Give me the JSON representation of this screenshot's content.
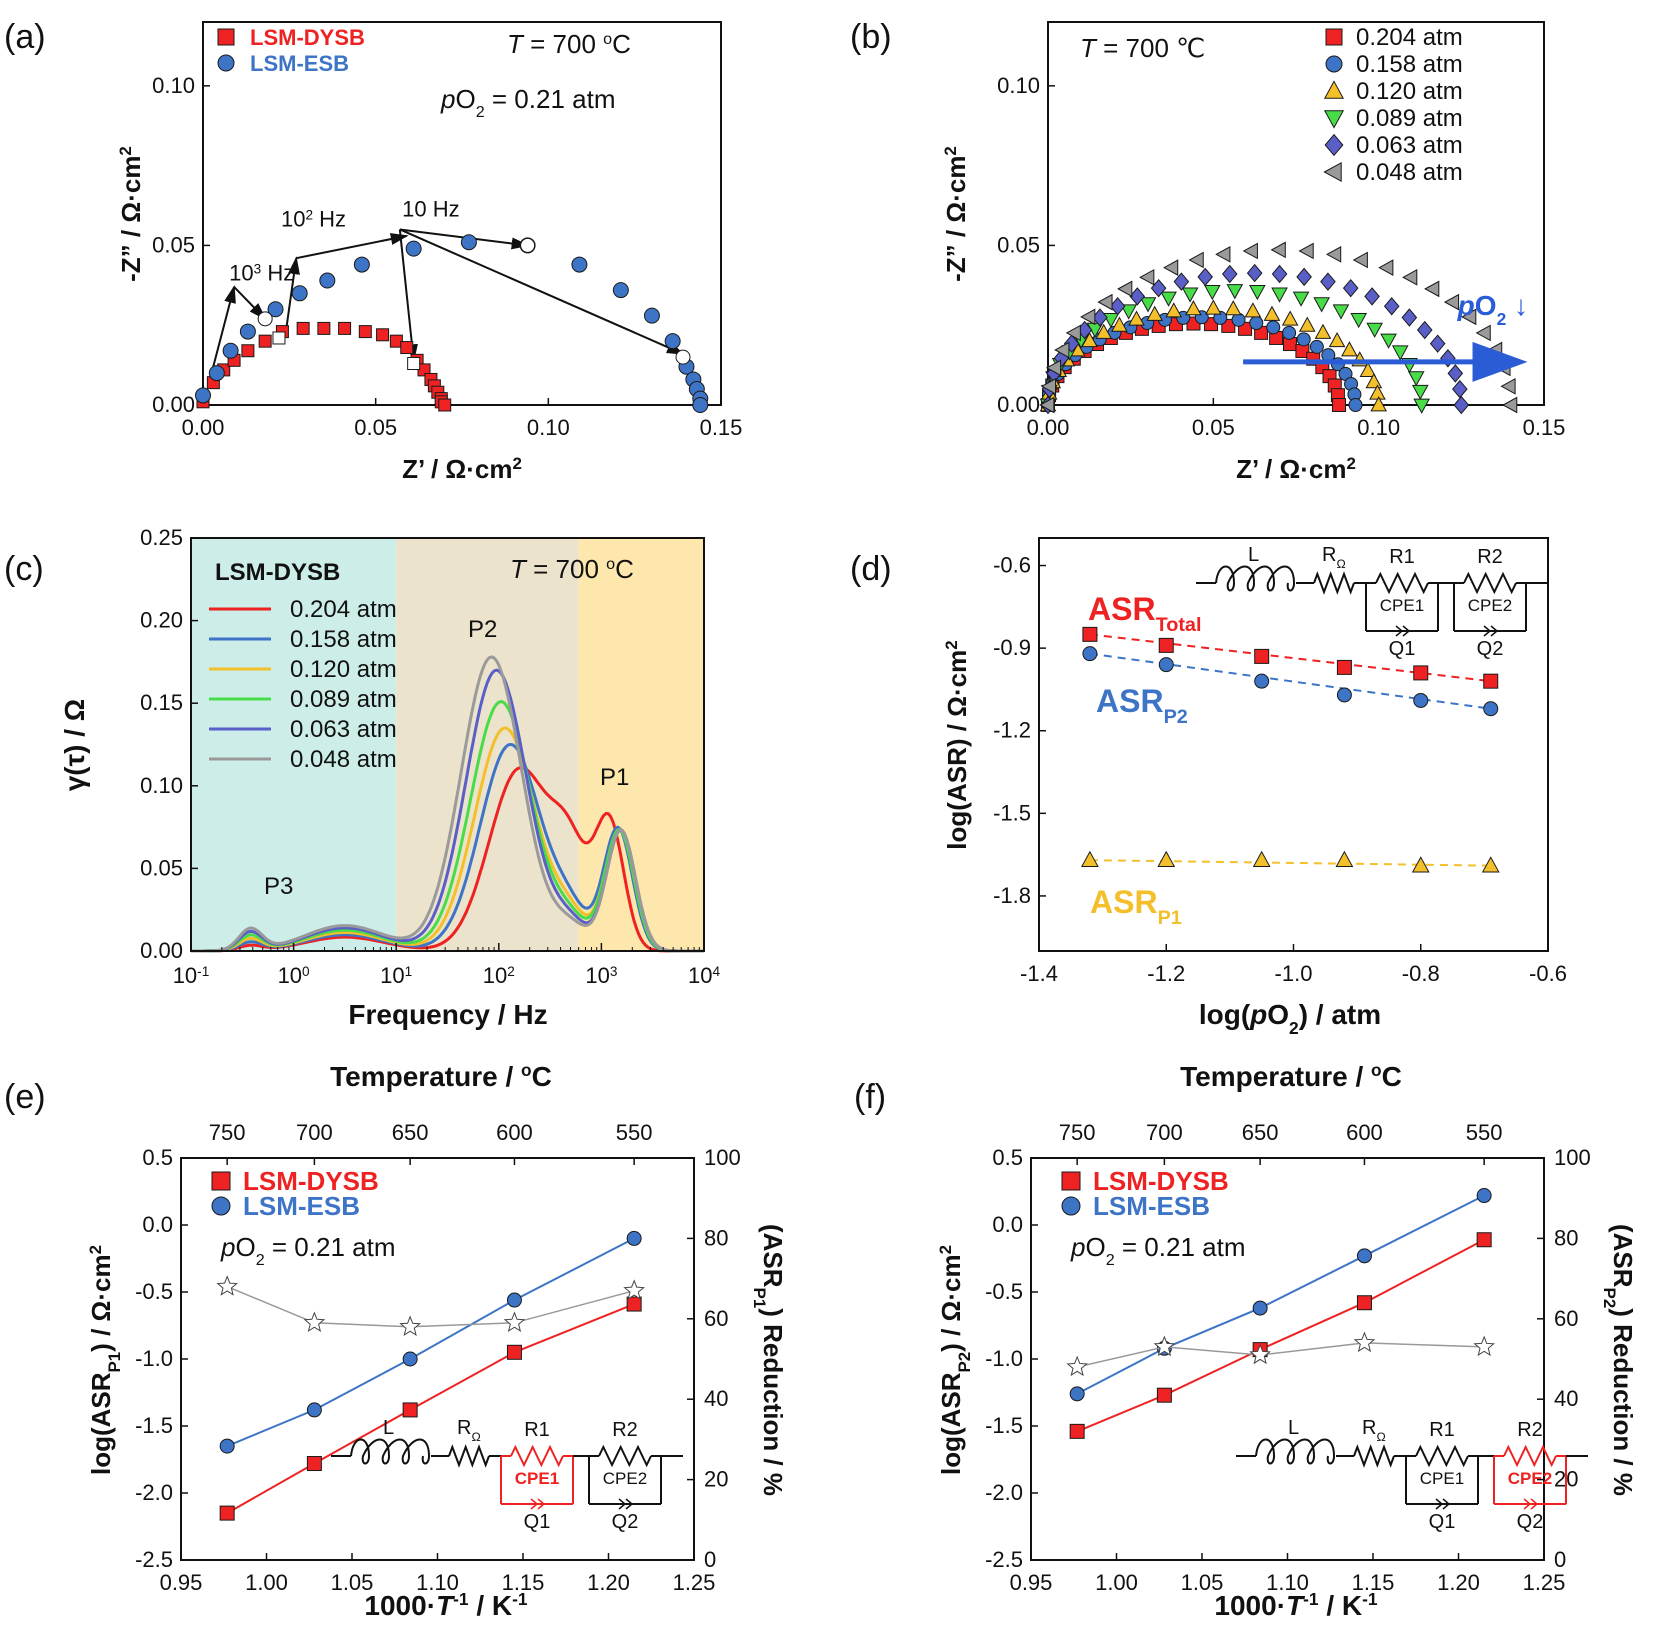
{
  "colors": {
    "red": "#ee2222",
    "blue": "#3d74c6",
    "yellow": "#f3bf2a",
    "green": "#48dd48",
    "purple": "#5a5fc8",
    "gray": "#9a9a9a",
    "text": "#111111",
    "bg_p3": "#cdeee8",
    "bg_p2": "#ece3cc",
    "bg_p1": "#fde7ad"
  },
  "chart_data": [
    {
      "panel": "(a)",
      "type": "scatter",
      "xlabel": "Z’ / Ω·cm2",
      "ylabel": "-Z” / Ω·cm2",
      "xlim": [
        0,
        0.15
      ],
      "ylim": [
        0,
        0.12
      ],
      "xticks": [
        "0.00",
        "0.05",
        "0.10",
        "0.15"
      ],
      "yticks": [
        "0.00",
        "0.05",
        "0.10"
      ],
      "conditions": [
        "T = 700 oC",
        "pO2 = 0.21 atm"
      ],
      "series": [
        {
          "name": "LSM-DYSB",
          "marker": "square",
          "color": "red",
          "x": [
            0.0,
            0.003,
            0.006,
            0.009,
            0.013,
            0.018,
            0.023,
            0.029,
            0.035,
            0.041,
            0.047,
            0.052,
            0.056,
            0.059,
            0.062,
            0.064,
            0.066,
            0.067,
            0.068,
            0.069,
            0.069,
            0.07
          ],
          "y": [
            0.001,
            0.007,
            0.011,
            0.014,
            0.017,
            0.02,
            0.023,
            0.024,
            0.024,
            0.024,
            0.023,
            0.022,
            0.02,
            0.018,
            0.014,
            0.011,
            0.008,
            0.006,
            0.004,
            0.002,
            0.001,
            0.0
          ]
        },
        {
          "name": "LSM-ESB",
          "marker": "circle",
          "color": "blue",
          "x": [
            0.0,
            0.004,
            0.008,
            0.013,
            0.021,
            0.028,
            0.036,
            0.046,
            0.061,
            0.077,
            0.094,
            0.109,
            0.121,
            0.13,
            0.136,
            0.14,
            0.142,
            0.143,
            0.144,
            0.144
          ],
          "y": [
            0.003,
            0.01,
            0.017,
            0.023,
            0.03,
            0.035,
            0.039,
            0.044,
            0.049,
            0.051,
            0.05,
            0.044,
            0.036,
            0.028,
            0.02,
            0.012,
            0.008,
            0.005,
            0.002,
            0.0
          ]
        }
      ],
      "open_markers": [
        {
          "x": 0.018,
          "y": 0.027,
          "shape": "circle"
        },
        {
          "x": 0.022,
          "y": 0.021,
          "shape": "square"
        },
        {
          "x": 0.061,
          "y": 0.013,
          "shape": "square"
        },
        {
          "x": 0.094,
          "y": 0.05,
          "shape": "circle"
        },
        {
          "x": 0.139,
          "y": 0.015,
          "shape": "circle"
        }
      ],
      "annotations": [
        {
          "text": "10³ Hz",
          "x": 0.017,
          "y": 0.039
        },
        {
          "text": "10² Hz",
          "x": 0.032,
          "y": 0.055
        },
        {
          "text": "10 Hz",
          "x": 0.066,
          "y": 0.059
        }
      ],
      "arrows": [
        {
          "x1": 0.002,
          "y1": 0.008,
          "x2": 0.009,
          "y2": 0.037
        },
        {
          "x1": 0.009,
          "y1": 0.037,
          "x2": 0.018,
          "y2": 0.027
        },
        {
          "x1": 0.024,
          "y1": 0.023,
          "x2": 0.027,
          "y2": 0.046
        },
        {
          "x1": 0.027,
          "y1": 0.046,
          "x2": 0.059,
          "y2": 0.053
        },
        {
          "x1": 0.057,
          "y1": 0.055,
          "x2": 0.061,
          "y2": 0.014
        },
        {
          "x1": 0.057,
          "y1": 0.055,
          "x2": 0.094,
          "y2": 0.05
        },
        {
          "x1": 0.057,
          "y1": 0.055,
          "x2": 0.139,
          "y2": 0.016
        }
      ]
    },
    {
      "panel": "(b)",
      "type": "scatter",
      "xlabel": "Z’ / Ω·cm2",
      "ylabel": "-Z” / Ω·cm2",
      "xlim": [
        0,
        0.15
      ],
      "ylim": [
        0,
        0.12
      ],
      "xticks": [
        "0.00",
        "0.05",
        "0.10",
        "0.15"
      ],
      "yticks": [
        "0.00",
        "0.05",
        "0.10"
      ],
      "conditions": [
        "T = 700 ℃"
      ],
      "arrow_label": "pO2 ↓",
      "series": [
        {
          "name": "0.204 atm",
          "marker": "square",
          "color": "red",
          "R": 0.088
        },
        {
          "name": "0.158 atm",
          "marker": "circle",
          "color": "blue",
          "R": 0.093
        },
        {
          "name": "0.120 atm",
          "marker": "triangle-up",
          "color": "yellow",
          "R": 0.1
        },
        {
          "name": "0.089 atm",
          "marker": "triangle-down",
          "color": "green",
          "R": 0.113
        },
        {
          "name": "0.063 atm",
          "marker": "diamond",
          "color": "purple",
          "R": 0.125
        },
        {
          "name": "0.048 atm",
          "marker": "triangle-left",
          "color": "gray",
          "R": 0.14
        }
      ]
    },
    {
      "panel": "(c)",
      "type": "line",
      "xlabel": "Frequency / Hz",
      "ylabel": "γ(τ) / Ω",
      "xscale": "log",
      "xlim": [
        0.1,
        10000
      ],
      "ylim": [
        0,
        0.25
      ],
      "xticks": [
        "10-1",
        "100",
        "101",
        "102",
        "103",
        "104"
      ],
      "yticks": [
        "0.00",
        "0.05",
        "0.10",
        "0.15",
        "0.20",
        "0.25"
      ],
      "legend_title": "LSM-DYSB",
      "condition": "T = 700 oC",
      "regions": [
        {
          "label": "P3",
          "from": 0.1,
          "to": 10,
          "color": "bg_p3"
        },
        {
          "label": "P2",
          "from": 10,
          "to": 600,
          "color": "bg_p2"
        },
        {
          "label": "P1",
          "from": 600,
          "to": 10000,
          "color": "bg_p1"
        }
      ],
      "peak_labels": [
        {
          "text": "P3",
          "x": 0.35,
          "y": 0.015
        },
        {
          "text": "P2",
          "x": 90,
          "y": 0.19
        },
        {
          "text": "P1",
          "x": 1100,
          "y": 0.092
        }
      ],
      "series": [
        {
          "name": "0.204 atm",
          "color": "red",
          "p2": 0.11,
          "p2f": 160,
          "p1": 0.076,
          "p1f": 1200,
          "shoulder": 0.08
        },
        {
          "name": "0.158 atm",
          "color": "blue",
          "p2": 0.125,
          "p2f": 130,
          "p1": 0.074,
          "p1f": 1450,
          "shoulder": 0.062
        },
        {
          "name": "0.120 atm",
          "color": "yellow",
          "p2": 0.135,
          "p2f": 115,
          "p1": 0.073,
          "p1f": 1500,
          "shoulder": 0.06
        },
        {
          "name": "0.089 atm",
          "color": "green",
          "p2": 0.151,
          "p2f": 105,
          "p1": 0.073,
          "p1f": 1500,
          "shoulder": 0.057
        },
        {
          "name": "0.063 atm",
          "color": "purple",
          "p2": 0.17,
          "p2f": 95,
          "p1": 0.073,
          "p1f": 1550,
          "shoulder": 0.055
        },
        {
          "name": "0.048 atm",
          "color": "gray",
          "p2": 0.178,
          "p2f": 85,
          "p1": 0.073,
          "p1f": 1550,
          "shoulder": 0.053
        }
      ]
    },
    {
      "panel": "(d)",
      "type": "scatter",
      "xlabel": "log(pO2) / atm",
      "ylabel": "log(ASR) / Ω·cm2",
      "xlim": [
        -1.4,
        -0.6
      ],
      "ylim": [
        -2.0,
        -0.5
      ],
      "xticks": [
        "-1.4",
        "-1.2",
        "-1.0",
        "-0.8",
        "-0.6"
      ],
      "yticks": [
        "-0.6",
        "-0.9",
        "-1.2",
        "-1.5",
        "-1.8"
      ],
      "x": [
        -1.32,
        -1.2,
        -1.05,
        -0.92,
        -0.8,
        -0.69
      ],
      "series": [
        {
          "name": "ASRTotal",
          "marker": "square",
          "color": "red",
          "y": [
            -0.85,
            -0.89,
            -0.93,
            -0.97,
            -0.99,
            -1.02
          ]
        },
        {
          "name": "ASRP2",
          "marker": "circle",
          "color": "blue",
          "y": [
            -0.92,
            -0.96,
            -1.02,
            -1.07,
            -1.09,
            -1.12
          ]
        },
        {
          "name": "ASRP1",
          "marker": "triangle-up",
          "color": "yellow",
          "y": [
            -1.67,
            -1.67,
            -1.67,
            -1.67,
            -1.69,
            -1.69
          ]
        }
      ],
      "circuit": [
        "L",
        "RΩ",
        "R1",
        "R2",
        "CPE1",
        "CPE2",
        "Q1",
        "Q2"
      ]
    },
    {
      "panel": "(e)",
      "type": "line",
      "xlabel": "1000·T-1 / K-1",
      "ylabel": "log(ASRP1) / Ω·cm2",
      "y2label": "(ASRP1) Reduction / %",
      "top_axis_label": "Temperature / oC",
      "top_ticks": [
        "750",
        "700",
        "650",
        "600",
        "550"
      ],
      "top_tick_x": [
        0.977,
        1.028,
        1.084,
        1.145,
        1.215
      ],
      "xlim": [
        0.95,
        1.25
      ],
      "ylim": [
        -2.5,
        0.5
      ],
      "y2lim": [
        0,
        100
      ],
      "xticks": [
        "0.95",
        "1.00",
        "1.05",
        "1.10",
        "1.15",
        "1.20",
        "1.25"
      ],
      "yticks": [
        "0.5",
        "0.0",
        "-0.5",
        "-1.0",
        "-1.5",
        "-2.0",
        "-2.5"
      ],
      "y2ticks": [
        "100",
        "80",
        "60",
        "40",
        "20",
        "0"
      ],
      "condition": "pO2 = 0.21 atm",
      "x": [
        0.977,
        1.028,
        1.084,
        1.145,
        1.215
      ],
      "series": [
        {
          "name": "LSM-DYSB",
          "marker": "square",
          "color": "red",
          "y": [
            -2.15,
            -1.78,
            -1.38,
            -0.95,
            -0.59
          ]
        },
        {
          "name": "LSM-ESB",
          "marker": "circle",
          "color": "blue",
          "y": [
            -1.65,
            -1.38,
            -1.0,
            -0.56,
            -0.1
          ]
        },
        {
          "name": "Reduction",
          "marker": "star",
          "color": "gray",
          "axis": "right",
          "y": [
            68,
            59,
            58,
            59,
            67
          ]
        }
      ],
      "highlight": "R1",
      "circuit": [
        "L",
        "RΩ",
        "R1",
        "R2",
        "CPE1",
        "CPE2",
        "Q1",
        "Q2"
      ]
    },
    {
      "panel": "(f)",
      "type": "line",
      "xlabel": "1000·T-1 / K-1",
      "ylabel": "log(ASRP2) / Ω·cm2",
      "y2label": "(ASRP2) Reduction / %",
      "top_axis_label": "Temperature / oC",
      "top_ticks": [
        "750",
        "700",
        "650",
        "600",
        "550"
      ],
      "top_tick_x": [
        0.977,
        1.028,
        1.084,
        1.145,
        1.215
      ],
      "xlim": [
        0.95,
        1.25
      ],
      "ylim": [
        -2.5,
        0.5
      ],
      "y2lim": [
        0,
        100
      ],
      "xticks": [
        "0.95",
        "1.00",
        "1.05",
        "1.10",
        "1.15",
        "1.20",
        "1.25"
      ],
      "yticks": [
        "0.5",
        "0.0",
        "-0.5",
        "-1.0",
        "-1.5",
        "-2.0",
        "-2.5"
      ],
      "y2ticks": [
        "100",
        "80",
        "60",
        "40",
        "20",
        "0"
      ],
      "condition": "pO2 = 0.21 atm",
      "x": [
        0.977,
        1.028,
        1.084,
        1.145,
        1.215
      ],
      "series": [
        {
          "name": "LSM-DYSB",
          "marker": "square",
          "color": "red",
          "y": [
            -1.54,
            -1.27,
            -0.93,
            -0.58,
            -0.11
          ]
        },
        {
          "name": "LSM-ESB",
          "marker": "circle",
          "color": "blue",
          "y": [
            -1.26,
            -0.92,
            -0.62,
            -0.23,
            0.22
          ]
        },
        {
          "name": "Reduction",
          "marker": "star",
          "color": "gray",
          "axis": "right",
          "y": [
            48,
            53,
            51,
            54,
            53
          ]
        }
      ],
      "highlight": "R2",
      "circuit": [
        "L",
        "RΩ",
        "R1",
        "R2",
        "CPE1",
        "CPE2",
        "Q1",
        "Q2"
      ]
    }
  ]
}
